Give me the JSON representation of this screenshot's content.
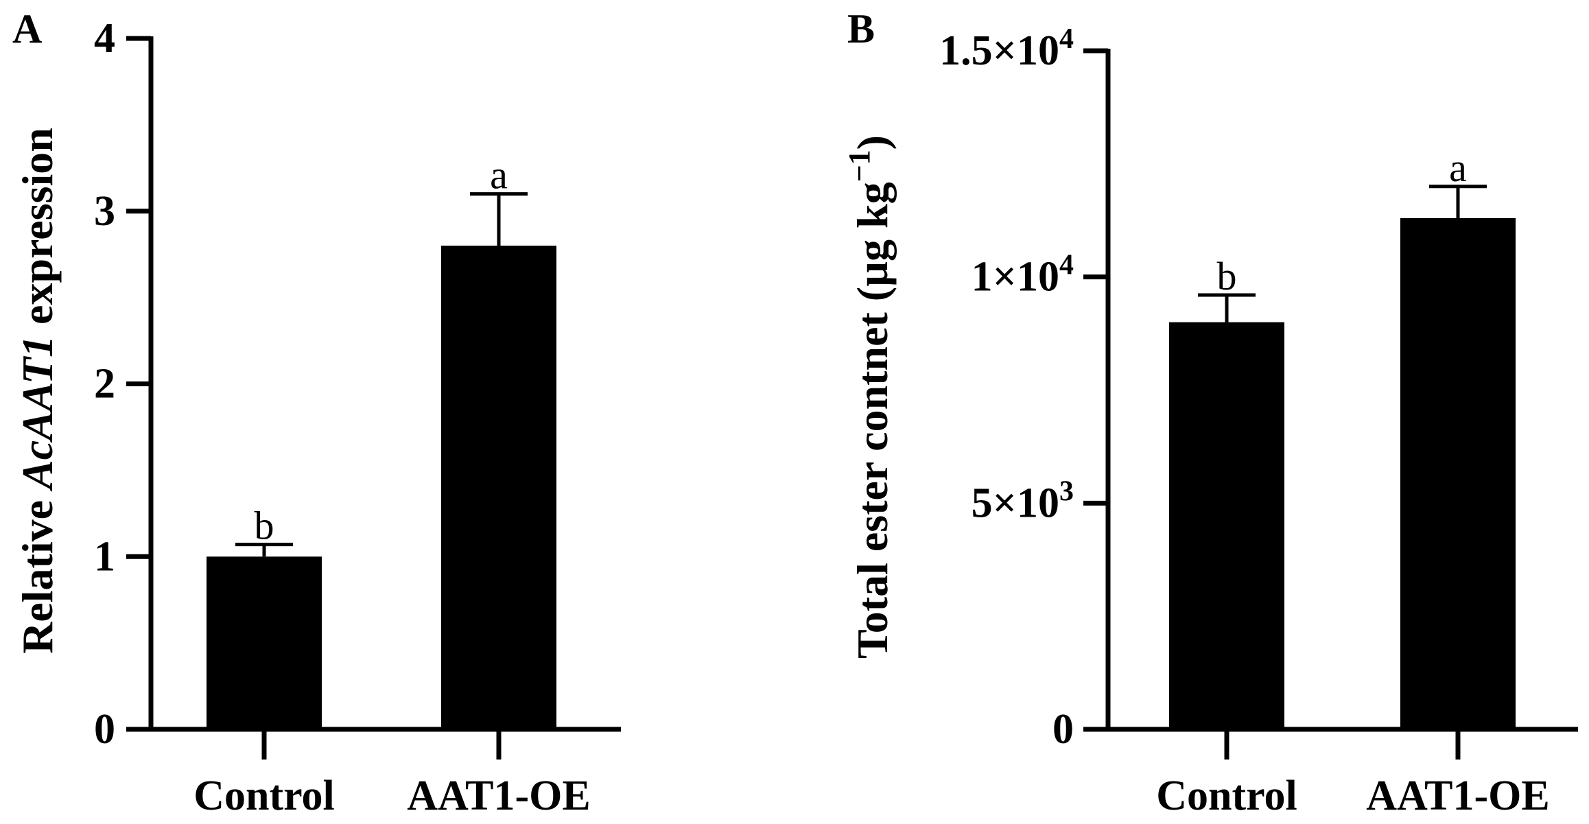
{
  "chart_data": [
    {
      "panel": "A",
      "type": "bar",
      "categories": [
        "Control",
        "AAT1-OE"
      ],
      "values": [
        1.0,
        2.8
      ],
      "errors": [
        0.07,
        0.3
      ],
      "significance": [
        "b",
        "a"
      ],
      "ylabel_parts": [
        "Relative ",
        "AcAAT1",
        " expression"
      ],
      "ylim": [
        0,
        4
      ],
      "yticks": [
        0,
        1,
        2,
        3,
        4
      ],
      "ytick_labels": [
        "0",
        "1",
        "2",
        "3",
        "4"
      ],
      "bar_color": "#000000"
    },
    {
      "panel": "B",
      "type": "bar",
      "categories": [
        "Control",
        "AAT1-OE"
      ],
      "values": [
        9000,
        11300
      ],
      "errors": [
        600,
        700
      ],
      "significance": [
        "b",
        "a"
      ],
      "ylabel_parts": [
        "Total ester contnet (µg kg",
        "−1",
        ")"
      ],
      "ylim": [
        0,
        15000
      ],
      "yticks": [
        0,
        5000,
        10000,
        15000
      ],
      "ytick_labels": [
        {
          "base": "0",
          "exp": ""
        },
        {
          "base": "5×10",
          "exp": "3"
        },
        {
          "base": "1×10",
          "exp": "4"
        },
        {
          "base": "1.5×10",
          "exp": "4"
        }
      ],
      "bar_color": "#000000"
    }
  ]
}
